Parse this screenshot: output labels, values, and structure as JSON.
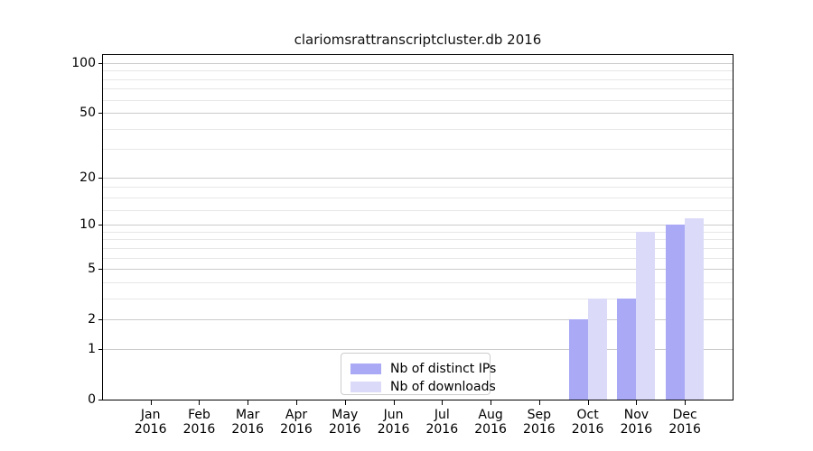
{
  "title": "clariomsrattranscriptcluster.db 2016",
  "chart_data": {
    "type": "bar",
    "title": "clariomsrattranscriptcluster.db 2016",
    "x_months": [
      "Jan",
      "Feb",
      "Mar",
      "Apr",
      "May",
      "Jun",
      "Jul",
      "Aug",
      "Sep",
      "Oct",
      "Nov",
      "Dec"
    ],
    "year": "2016",
    "categories": [
      "Jan 2016",
      "Feb 2016",
      "Mar 2016",
      "Apr 2016",
      "May 2016",
      "Jun 2016",
      "Jul 2016",
      "Aug 2016",
      "Sep 2016",
      "Oct 2016",
      "Nov 2016",
      "Dec 2016"
    ],
    "series": [
      {
        "name": "Nb of distinct IPs",
        "color": "#a9a9f6",
        "values": [
          0,
          0,
          0,
          0,
          0,
          0,
          0,
          0,
          0,
          2,
          3,
          10
        ]
      },
      {
        "name": "Nb of downloads",
        "color": "#dbdbf9",
        "values": [
          0,
          0,
          0,
          0,
          0,
          0,
          0,
          0,
          0,
          3,
          9,
          11
        ]
      }
    ],
    "y_axis": {
      "scale": "log1p",
      "ticks": [
        0,
        1,
        2,
        5,
        10,
        20,
        50,
        100
      ],
      "tick_labels": [
        "0",
        "1",
        "2",
        "5",
        "10",
        "20",
        "50",
        "100"
      ],
      "minor_gridlines": [
        3,
        4,
        6,
        7,
        8,
        9,
        12.5,
        15,
        17.5,
        30,
        40,
        60,
        70,
        80,
        90
      ],
      "ylim": [
        0,
        113
      ]
    },
    "xlabel": "",
    "ylabel": "",
    "grid": true,
    "legend": {
      "position": "lower center",
      "entries": [
        "Nb of distinct IPs",
        "Nb of downloads"
      ]
    }
  },
  "colors": {
    "background": "#ffffff",
    "axis": "#000000",
    "major_gridline": "#cbcbcb",
    "minor_gridline": "#e7e7e7",
    "distinct_ips_bar": "#a9a9f6",
    "downloads_bar": "#dbdbf9"
  }
}
